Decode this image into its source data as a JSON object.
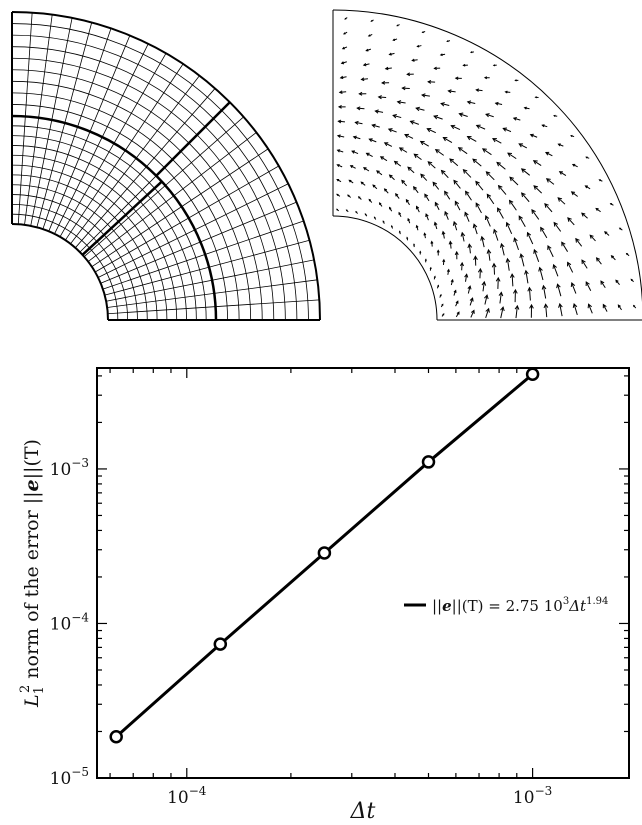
{
  "panels": {
    "mesh": {
      "kind": "mesh-diagram"
    },
    "velocity": {
      "kind": "vector-field"
    }
  },
  "chart_data": {
    "type": "line",
    "xlabel": "Δt",
    "ylabel_main": "norm of the error ||",
    "ylabel_prefix": "L",
    "ylabel_sup": "2",
    "ylabel_sub": "1",
    "ylabel_vec": "e",
    "ylabel_suffix": "||(T)",
    "x_scale": "log",
    "y_scale": "log",
    "xlim": [
      5.5e-05,
      0.0019
    ],
    "ylim": [
      1e-05,
      0.0045
    ],
    "x_ticks": [
      {
        "value": 0.0001,
        "base": "10",
        "exp": "−4"
      },
      {
        "value": 0.001,
        "base": "10",
        "exp": "−3"
      }
    ],
    "y_ticks": [
      {
        "value": 1e-05,
        "base": "10",
        "exp": "−5"
      },
      {
        "value": 0.0001,
        "base": "10",
        "exp": "−4"
      },
      {
        "value": 0.001,
        "base": "10",
        "exp": "−3"
      }
    ],
    "series": [
      {
        "name": "||e||(T) = 2.75 10³Δt¹·⁹⁴",
        "x": [
          6.25e-05,
          0.000125,
          0.00025,
          0.0005,
          0.001
        ],
        "y": [
          1.85e-05,
          7.35e-05,
          0.000286,
          0.00111,
          0.0041
        ],
        "marker": "circle-open",
        "color": "#000000"
      }
    ],
    "legend": {
      "position": "center-right",
      "prefix": "||",
      "vec": "e",
      "mid": "||(T) = 2.75 10",
      "exp1": "3",
      "delta": "Δt",
      "exp2": "1.94"
    },
    "grid": false
  }
}
